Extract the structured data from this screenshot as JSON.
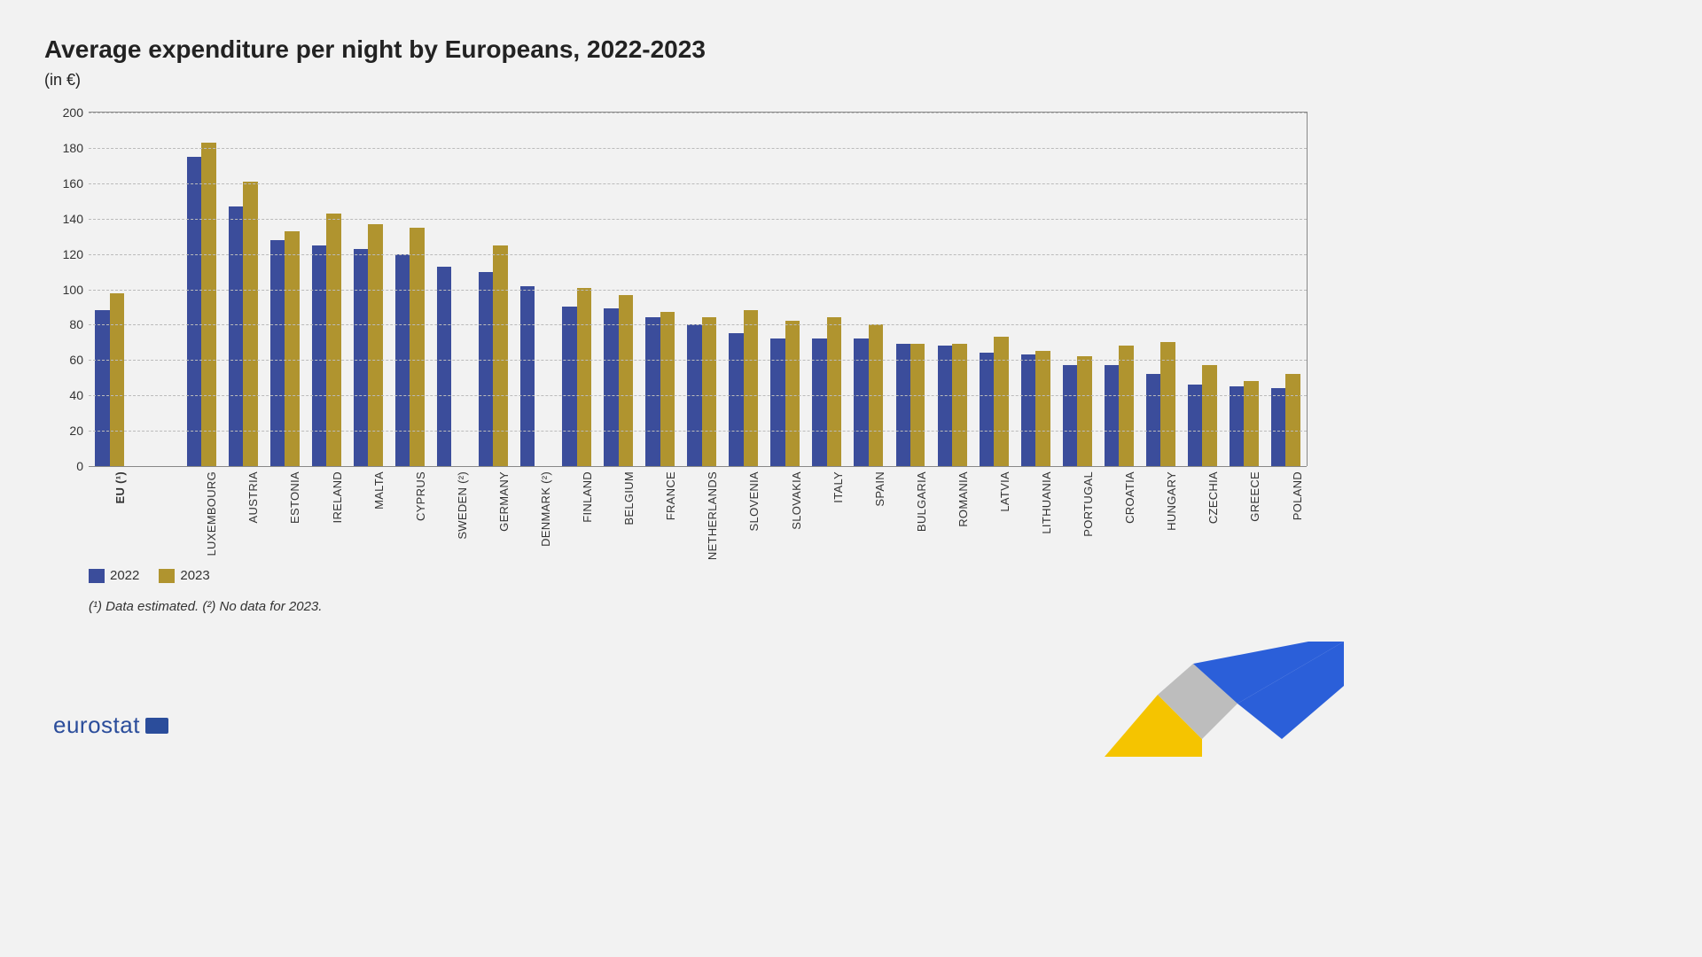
{
  "title": "Average expenditure per night by Europeans, 2022-2023",
  "subtitle": "(in €)",
  "chart": {
    "type": "bar",
    "ylim": [
      0,
      200
    ],
    "ytick_step": 20,
    "yticks": [
      0,
      20,
      40,
      60,
      80,
      100,
      120,
      140,
      160,
      180,
      200
    ],
    "grid_color": "#bbbbbb",
    "axis_color": "#888888",
    "background_color": "#f2f2f2",
    "label_fontsize": 13,
    "ytick_fontsize": 14,
    "series": [
      {
        "name": "2022",
        "color": "#3b4d9b"
      },
      {
        "name": "2023",
        "color": "#b0942f"
      }
    ],
    "bar_width_ratio": 0.35,
    "gap_after_first": true,
    "categories": [
      {
        "label": "EU (¹)",
        "bold": true,
        "values": [
          88,
          98
        ]
      },
      {
        "label": "LUXEMBOURG",
        "values": [
          175,
          183
        ]
      },
      {
        "label": "AUSTRIA",
        "values": [
          147,
          161
        ]
      },
      {
        "label": "ESTONIA",
        "values": [
          128,
          133
        ]
      },
      {
        "label": "IRELAND",
        "values": [
          125,
          143
        ]
      },
      {
        "label": "MALTA",
        "values": [
          123,
          137
        ]
      },
      {
        "label": "CYPRUS",
        "values": [
          120,
          135
        ]
      },
      {
        "label": "SWEDEN (²)",
        "values": [
          113,
          null
        ]
      },
      {
        "label": "GERMANY",
        "values": [
          110,
          125
        ]
      },
      {
        "label": "DENMARK (²)",
        "values": [
          102,
          null
        ]
      },
      {
        "label": "FINLAND",
        "values": [
          90,
          101
        ]
      },
      {
        "label": "BELGIUM",
        "values": [
          89,
          97
        ]
      },
      {
        "label": "FRANCE",
        "values": [
          84,
          87
        ]
      },
      {
        "label": "NETHERLANDS",
        "values": [
          80,
          84
        ]
      },
      {
        "label": "SLOVENIA",
        "values": [
          75,
          88
        ]
      },
      {
        "label": "SLOVAKIA",
        "values": [
          72,
          82
        ]
      },
      {
        "label": "ITALY",
        "values": [
          72,
          84
        ]
      },
      {
        "label": "SPAIN",
        "values": [
          72,
          80
        ]
      },
      {
        "label": "BULGARIA",
        "values": [
          69,
          69
        ]
      },
      {
        "label": "ROMANIA",
        "values": [
          68,
          69
        ]
      },
      {
        "label": "LATVIA",
        "values": [
          64,
          73
        ]
      },
      {
        "label": "LITHUANIA",
        "values": [
          63,
          65
        ]
      },
      {
        "label": "PORTUGAL",
        "values": [
          57,
          62
        ]
      },
      {
        "label": "CROATIA",
        "values": [
          57,
          68
        ]
      },
      {
        "label": "HUNGARY",
        "values": [
          52,
          70
        ]
      },
      {
        "label": "CZECHIA",
        "values": [
          46,
          57
        ]
      },
      {
        "label": "GREECE",
        "values": [
          45,
          48
        ]
      },
      {
        "label": "POLAND",
        "values": [
          44,
          52
        ]
      }
    ]
  },
  "legend": [
    {
      "label": "2022",
      "color": "#3b4d9b"
    },
    {
      "label": "2023",
      "color": "#b0942f"
    }
  ],
  "footnote": "(¹) Data estimated. (²) No data for 2023.",
  "brand": "eurostat",
  "swoosh_colors": {
    "yellow": "#f5c400",
    "gray": "#bdbdbd",
    "blue": "#2b5fd9"
  }
}
